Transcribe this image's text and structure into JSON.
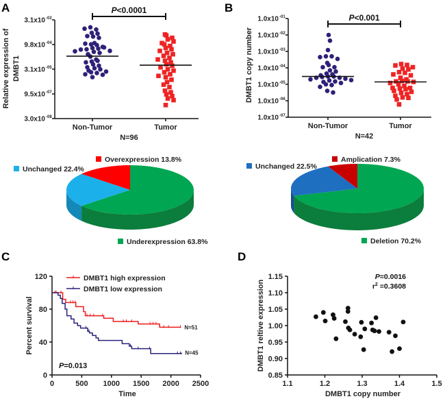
{
  "panels": {
    "a": "A",
    "b": "B",
    "c": "C",
    "d": "D"
  },
  "chart_data": [
    {
      "type": "scatter",
      "panel": "A",
      "ylabel": [
        "Relative expression of",
        "DMBT1"
      ],
      "yscale": "log",
      "ylim": [
        3e-08,
        0.031
      ],
      "yticks": [
        {
          "value": 0.031,
          "base": "3.1x10",
          "exp": "-02"
        },
        {
          "value": 0.00098,
          "base": "9.8x10",
          "exp": "-04"
        },
        {
          "value": 3.1e-05,
          "base": "3.1x10",
          "exp": "-05"
        },
        {
          "value": 9.5e-07,
          "base": "9.5x10",
          "exp": "-07"
        },
        {
          "value": 3e-08,
          "base": "3.0x10",
          "exp": "-08"
        }
      ],
      "categories": [
        "Non-Tumor",
        "Tumor"
      ],
      "n_label": "N=96",
      "p_label": {
        "italic": "P",
        "rest": "<0.0001"
      },
      "series": [
        {
          "category": "Non-Tumor",
          "marker": "circle",
          "color": "#2e2178",
          "median": 0.00019,
          "values": [
            0.011,
            0.008,
            0.009,
            0.005,
            0.0045,
            0.003,
            0.0025,
            0.0032,
            0.0012,
            0.001,
            0.0009,
            0.0011,
            0.0006,
            0.00055,
            0.0005,
            0.00065,
            0.0007,
            0.00048,
            0.0004,
            0.00035,
            0.0003,
            0.00025,
            0.00038,
            0.00018,
            0.00012,
            9e-05,
            0.0001,
            8e-05,
            6e-05,
            5e-05,
            4e-05,
            3.5e-05,
            3e-05,
            2.5e-05,
            2e-05,
            2.2e-05,
            1.8e-05,
            1.5e-05,
            1.4e-05,
            1e-05
          ]
        },
        {
          "category": "Tumor",
          "marker": "square",
          "color": "#ee2424",
          "median": 5.4e-05,
          "values": [
            0.004,
            0.0035,
            0.0025,
            0.002,
            0.0015,
            0.0012,
            0.001,
            0.0008,
            0.0006,
            0.0005,
            0.0004,
            0.0003,
            0.00025,
            0.0002,
            0.00015,
            0.00012,
            0.0001,
            8e-05,
            6e-05,
            5e-05,
            4e-05,
            3e-05,
            2.5e-05,
            2e-05,
            1.5e-05,
            1.2e-05,
            1e-05,
            7e-06,
            5e-06,
            3.5e-06,
            2.5e-06,
            1.5e-06,
            1.2e-06,
            9e-07,
            7e-07,
            5e-07,
            4e-07,
            2e-07
          ]
        }
      ]
    },
    {
      "type": "scatter",
      "panel": "B",
      "ylabel": [
        "DMBT1 copy number"
      ],
      "yscale": "log",
      "ylim": [
        1e-07,
        0.1
      ],
      "yticks": [
        {
          "value": 0.1,
          "base": "1.0x10",
          "exp": "-01"
        },
        {
          "value": 0.01,
          "base": "1.0x10",
          "exp": "-02"
        },
        {
          "value": 0.001,
          "base": "1.0x10",
          "exp": "-03"
        },
        {
          "value": 0.0001,
          "base": "1.0x10",
          "exp": "-04"
        },
        {
          "value": 1e-05,
          "base": "1.0x10",
          "exp": "-05"
        },
        {
          "value": 1e-06,
          "base": "1.0x10",
          "exp": "-06"
        },
        {
          "value": 1e-07,
          "base": "1.0x10",
          "exp": "-07"
        }
      ],
      "categories": [
        "Non-Tumor",
        "Tumor"
      ],
      "n_label": "N=42",
      "p_label": {
        "italic": "P",
        "rest": "<0.001"
      },
      "series": [
        {
          "category": "Non-Tumor",
          "marker": "circle",
          "color": "#2e2178",
          "median": 3e-05,
          "values": [
            0.01,
            0.0045,
            0.0012,
            0.0005,
            0.0005,
            0.00045,
            0.00035,
            0.0002,
            0.00015,
            0.00011,
            0.00011,
            7e-05,
            6e-05,
            4.5e-05,
            4e-05,
            3.5e-05,
            3e-05,
            3e-05,
            2.8e-05,
            2.5e-05,
            2.5e-05,
            2.2e-05,
            2e-05,
            1.8e-05,
            1.7e-05,
            1.5e-05,
            1.4e-05,
            1.2e-05,
            1e-05,
            9e-06,
            7e-06,
            4e-06,
            3.2e-06
          ]
        },
        {
          "category": "Tumor",
          "marker": "square",
          "color": "#ee2424",
          "median": 1.4e-05,
          "values": [
            0.00017,
            0.00015,
            0.00014,
            0.00011,
            9e-05,
            8e-05,
            5.5e-05,
            5e-05,
            4e-05,
            3.5e-05,
            2.5e-05,
            2e-05,
            1.6e-05,
            1.5e-05,
            1.5e-05,
            1.4e-05,
            1.2e-05,
            1e-05,
            8e-06,
            6e-06,
            6e-06,
            5.5e-06,
            5e-06,
            4e-06,
            3.5e-06,
            3e-06,
            2.5e-06,
            2e-06,
            1.6e-06,
            1.5e-06,
            1.2e-06,
            6e-07
          ]
        }
      ]
    },
    {
      "type": "pie",
      "panel": "A",
      "style": "3d",
      "slices": [
        {
          "label": "Underexpression 63.8%",
          "value": 63.8,
          "color": "#00a651",
          "side": "#0b7d3c"
        },
        {
          "label": "Unchanged 22.4%",
          "value": 22.4,
          "color": "#1cb0ea",
          "side": "#1488b8"
        },
        {
          "label": "Overexpression 13.8%",
          "value": 13.8,
          "color": "#ff0000",
          "side": "#b80000"
        }
      ]
    },
    {
      "type": "pie",
      "panel": "B",
      "style": "3d",
      "slices": [
        {
          "label": "Deletion 70.2%",
          "value": 70.2,
          "color": "#00a651",
          "side": "#0b7d3c"
        },
        {
          "label": "Unchanged 22.5%",
          "value": 22.5,
          "color": "#1f6fc1",
          "side": "#154f8c"
        },
        {
          "label": "Amplication 7.3%",
          "value": 7.3,
          "color": "#c80000",
          "side": "#8a0000"
        }
      ]
    },
    {
      "type": "line",
      "subtype": "kaplan-meier",
      "panel": "C",
      "xlabel": "Time",
      "ylabel": "Percent survival",
      "xlim": [
        0,
        2500
      ],
      "ylim": [
        0,
        120
      ],
      "xticks": [
        0,
        500,
        1000,
        1500,
        2000,
        2500
      ],
      "yticks": [
        0,
        40,
        80,
        120
      ],
      "p_label": {
        "italic": "P",
        "rest": "=0.013"
      },
      "legend_position": "top",
      "series": [
        {
          "name": "DMBT1 high expression",
          "color": "#ee1c1c",
          "end_label": "N=51",
          "steps": [
            [
              0,
              100
            ],
            [
              180,
              92
            ],
            [
              230,
              88
            ],
            [
              400,
              83
            ],
            [
              530,
              77
            ],
            [
              560,
              72
            ],
            [
              870,
              69
            ],
            [
              1030,
              65
            ],
            [
              1450,
              62
            ],
            [
              1810,
              58
            ],
            [
              2170,
              58
            ]
          ],
          "censored": [
            50,
            70,
            150,
            310,
            350,
            390,
            590,
            640,
            700,
            850,
            1200,
            1250,
            1340,
            1650,
            1700,
            1750,
            1880,
            1960,
            2160
          ]
        },
        {
          "name": "DMBT1 low expression",
          "color": "#2a237a",
          "end_label": "N=45",
          "steps": [
            [
              0,
              100
            ],
            [
              100,
              97
            ],
            [
              140,
              93
            ],
            [
              170,
              87
            ],
            [
              220,
              80
            ],
            [
              250,
              72
            ],
            [
              320,
              68
            ],
            [
              370,
              63
            ],
            [
              430,
              60
            ],
            [
              480,
              57
            ],
            [
              600,
              53
            ],
            [
              630,
              51
            ],
            [
              680,
              48
            ],
            [
              740,
              45
            ],
            [
              780,
              42
            ],
            [
              1180,
              38
            ],
            [
              1300,
              35
            ],
            [
              1340,
              32
            ],
            [
              1660,
              26
            ],
            [
              2180,
              27
            ]
          ],
          "censored": [
            570,
            620,
            1320,
            1450,
            1640,
            2110,
            2160
          ]
        }
      ]
    },
    {
      "type": "scatter",
      "panel": "D",
      "xlabel": "DMBT1 copy number",
      "ylabel": "DMBT1 reltive expression",
      "xlim": [
        1.1,
        1.5
      ],
      "ylim": [
        0.85,
        1.15
      ],
      "xticks": [
        "1.1",
        "1.2",
        "1.3",
        "1.4",
        "1.5"
      ],
      "yticks": [
        "0.85",
        "0.90",
        "0.95",
        "1.00",
        "1.05",
        "1.10",
        "1.15"
      ],
      "p_label": {
        "italic": "P",
        "rest": "=0.0016"
      },
      "r2_label": {
        "base": "r",
        "sup": "2",
        "rest": " =0.3608"
      },
      "color": "#111111",
      "points": [
        [
          1.176,
          1.027
        ],
        [
          1.196,
          1.04
        ],
        [
          1.201,
          1.014
        ],
        [
          1.222,
          1.033
        ],
        [
          1.225,
          1.022
        ],
        [
          1.23,
          0.96
        ],
        [
          1.255,
          1.012
        ],
        [
          1.262,
          1.053
        ],
        [
          1.262,
          1.043
        ],
        [
          1.263,
          0.993
        ],
        [
          1.267,
          0.987
        ],
        [
          1.28,
          0.974
        ],
        [
          1.296,
          0.966
        ],
        [
          1.298,
          1.01
        ],
        [
          1.304,
          0.927
        ],
        [
          1.307,
          0.99
        ],
        [
          1.325,
          1.008
        ],
        [
          1.328,
          0.987
        ],
        [
          1.333,
          0.984
        ],
        [
          1.337,
          1.024
        ],
        [
          1.345,
          0.982
        ],
        [
          1.372,
          0.98
        ],
        [
          1.38,
          0.921
        ],
        [
          1.389,
          0.969
        ],
        [
          1.4,
          0.93
        ],
        [
          1.41,
          1.011
        ]
      ]
    }
  ]
}
